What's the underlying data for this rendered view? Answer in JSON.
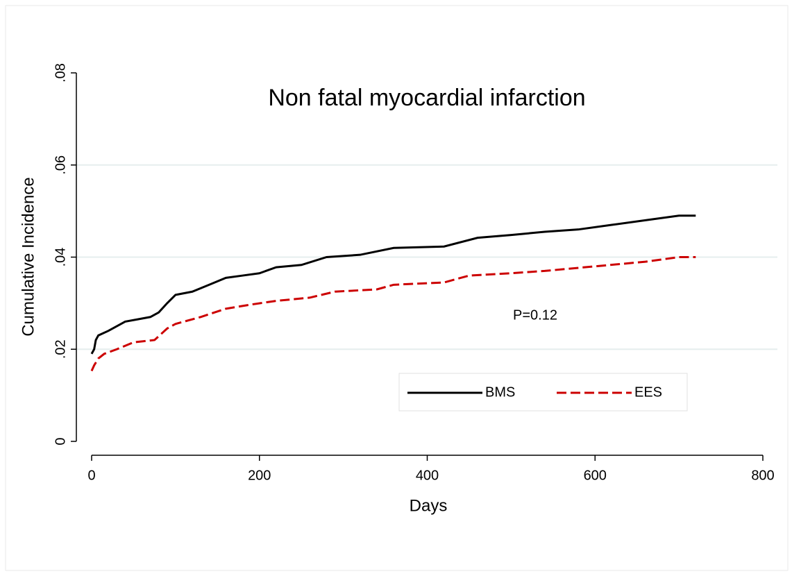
{
  "chart_data": {
    "type": "line",
    "title": "Non fatal myocardial infarction",
    "xlabel": "Days",
    "ylabel": "Cumulative Incidence",
    "annotation": "P=0.12",
    "xlim": [
      0,
      800
    ],
    "xticks": [
      0,
      200,
      400,
      600,
      800
    ],
    "ylim": [
      0,
      0.08
    ],
    "yticks": [
      0,
      {
        "value": 0.02,
        "label": ".02"
      },
      {
        "value": 0.04,
        "label": ".04"
      },
      {
        "value": 0.06,
        "label": ".06"
      },
      {
        "value": 0.08,
        "label": ".08"
      }
    ],
    "grid": true,
    "series": [
      {
        "name": "BMS",
        "color": "#000000",
        "dash": "solid",
        "x": [
          0,
          3,
          5,
          8,
          20,
          30,
          40,
          55,
          70,
          80,
          90,
          100,
          120,
          140,
          160,
          180,
          200,
          220,
          250,
          280,
          320,
          360,
          420,
          460,
          500,
          540,
          580,
          620,
          660,
          700,
          720
        ],
        "values": [
          0.019,
          0.02,
          0.022,
          0.023,
          0.024,
          0.025,
          0.026,
          0.0265,
          0.027,
          0.028,
          0.03,
          0.0318,
          0.0325,
          0.034,
          0.0355,
          0.036,
          0.0365,
          0.0378,
          0.0383,
          0.04,
          0.0405,
          0.042,
          0.0423,
          0.0442,
          0.0448,
          0.0455,
          0.046,
          0.047,
          0.048,
          0.049,
          0.049
        ]
      },
      {
        "name": "EES",
        "color": "#cc0000",
        "dash": "dashed",
        "x": [
          0,
          3,
          8,
          15,
          30,
          50,
          75,
          90,
          100,
          130,
          160,
          190,
          220,
          260,
          290,
          340,
          360,
          420,
          450,
          500,
          540,
          600,
          660,
          700,
          720
        ],
        "values": [
          0.0153,
          0.0165,
          0.018,
          0.019,
          0.02,
          0.0215,
          0.022,
          0.0245,
          0.0255,
          0.027,
          0.0288,
          0.0297,
          0.0305,
          0.0312,
          0.0325,
          0.033,
          0.034,
          0.0345,
          0.036,
          0.0365,
          0.037,
          0.038,
          0.039,
          0.04,
          0.04
        ]
      }
    ]
  }
}
